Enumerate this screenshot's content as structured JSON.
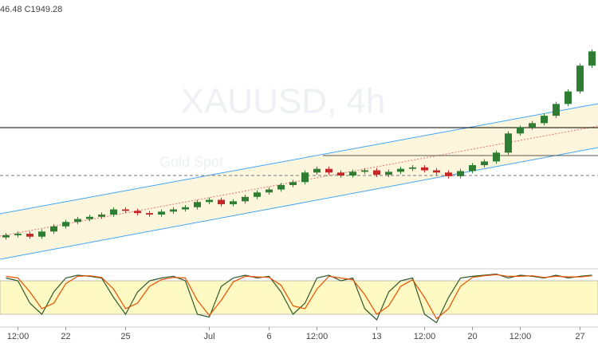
{
  "chart_data": {
    "type": "candlestick",
    "header": "46.48  C1949.28",
    "watermark": "XAUUSD, 4h",
    "watermark_sub": "Gold Spot",
    "categories": [
      null,
      "12:00",
      null,
      null,
      null,
      "22",
      null,
      null,
      null,
      null,
      "25",
      null,
      null,
      null,
      null,
      null,
      null,
      "Jul",
      null,
      null,
      null,
      null,
      "6",
      null,
      null,
      null,
      "12:00",
      null,
      null,
      null,
      null,
      "13",
      null,
      null,
      null,
      "12:00",
      null,
      null,
      null,
      "20",
      null,
      null,
      null,
      "12:00",
      null,
      null,
      null,
      null,
      "27",
      null
    ],
    "open": [
      1697,
      1700,
      1702,
      1698,
      1705,
      1712,
      1718,
      1722,
      1725,
      1728,
      1735,
      1733,
      1730,
      1728,
      1732,
      1735,
      1738,
      1745,
      1748,
      1742,
      1746,
      1752,
      1758,
      1762,
      1768,
      1772,
      1785,
      1790,
      1785,
      1781,
      1786,
      1788,
      1782,
      1786,
      1790,
      1792,
      1788,
      1785,
      1780,
      1787,
      1795,
      1800,
      1812,
      1838,
      1846,
      1852,
      1862,
      1878,
      1895,
      1930
    ],
    "high": [
      1703,
      1705,
      1705,
      1708,
      1715,
      1721,
      1725,
      1728,
      1731,
      1738,
      1738,
      1736,
      1733,
      1735,
      1738,
      1741,
      1748,
      1751,
      1751,
      1749,
      1755,
      1761,
      1765,
      1771,
      1775,
      1788,
      1793,
      1793,
      1788,
      1789,
      1791,
      1791,
      1789,
      1793,
      1795,
      1795,
      1791,
      1788,
      1790,
      1798,
      1803,
      1815,
      1841,
      1849,
      1855,
      1865,
      1881,
      1898,
      1933,
      1952
    ],
    "low": [
      1694,
      1697,
      1695,
      1695,
      1702,
      1709,
      1715,
      1719,
      1722,
      1725,
      1730,
      1727,
      1725,
      1725,
      1729,
      1732,
      1735,
      1742,
      1739,
      1739,
      1743,
      1749,
      1755,
      1759,
      1765,
      1769,
      1782,
      1782,
      1778,
      1778,
      1783,
      1779,
      1779,
      1783,
      1787,
      1785,
      1782,
      1777,
      1777,
      1784,
      1792,
      1797,
      1809,
      1835,
      1843,
      1849,
      1859,
      1875,
      1892,
      1927
    ],
    "close": [
      1700,
      1702,
      1698,
      1705,
      1712,
      1718,
      1722,
      1725,
      1728,
      1735,
      1733,
      1730,
      1728,
      1732,
      1735,
      1738,
      1745,
      1748,
      1742,
      1746,
      1752,
      1758,
      1762,
      1768,
      1772,
      1785,
      1790,
      1785,
      1781,
      1786,
      1788,
      1782,
      1786,
      1790,
      1792,
      1788,
      1785,
      1780,
      1787,
      1795,
      1800,
      1812,
      1838,
      1846,
      1852,
      1862,
      1878,
      1895,
      1930,
      1949.28
    ],
    "up_color": "#2e7d32",
    "down_color": "#c62828",
    "ylim": [
      1662,
      2019
    ],
    "stochastic": {
      "ylim": [
        0,
        100
      ],
      "band": [
        20,
        80
      ],
      "series": [
        {
          "color": "#2e5a2e",
          "values": [
            85,
            80,
            40,
            20,
            60,
            85,
            90,
            88,
            85,
            50,
            20,
            60,
            80,
            85,
            88,
            80,
            20,
            15,
            70,
            85,
            90,
            85,
            88,
            60,
            20,
            40,
            85,
            90,
            80,
            85,
            30,
            10,
            60,
            80,
            85,
            20,
            5,
            50,
            85,
            88,
            90,
            92,
            85,
            90,
            88,
            85,
            90,
            85,
            88,
            90
          ]
        },
        {
          "color": "#e65100",
          "values": [
            88,
            85,
            60,
            30,
            40,
            75,
            88,
            89,
            86,
            65,
            30,
            40,
            70,
            82,
            86,
            85,
            45,
            18,
            45,
            78,
            88,
            87,
            86,
            72,
            35,
            30,
            65,
            88,
            85,
            82,
            55,
            20,
            35,
            70,
            82,
            50,
            12,
            30,
            70,
            86,
            89,
            91,
            88,
            88,
            89,
            86,
            88,
            87,
            87,
            89
          ]
        }
      ]
    }
  }
}
